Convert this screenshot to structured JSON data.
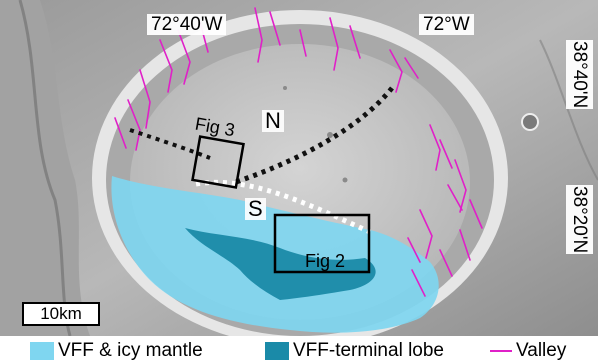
{
  "map": {
    "coords": {
      "lon_left": "72°40'W",
      "lon_right": "72°W",
      "lat_top": "38°40'N",
      "lat_bottom": "38°20'N"
    },
    "regions": {
      "north": "N",
      "south": "S"
    },
    "figures": {
      "fig3": "Fig 3",
      "fig2": "Fig 2"
    },
    "scale_bar": "10km",
    "legend": [
      {
        "label": "VFF & icy mantle",
        "color": "#7fd6f0",
        "symbol": "swatch"
      },
      {
        "label": "VFF-terminal lobe",
        "color": "#1a8aa8",
        "symbol": "swatch"
      },
      {
        "label": "Valley",
        "color": "#e020c8",
        "symbol": "line"
      }
    ]
  }
}
